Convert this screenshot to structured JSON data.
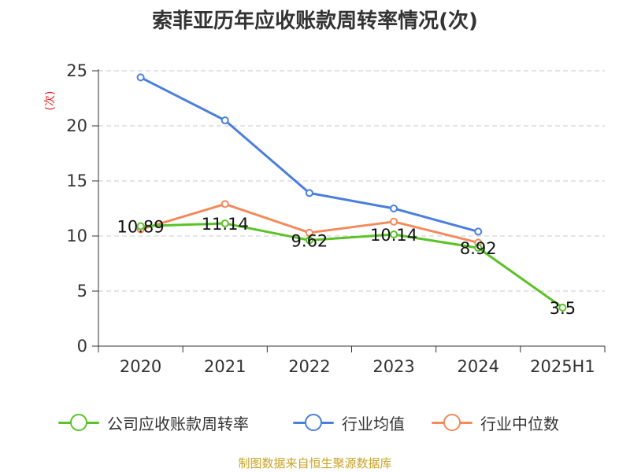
{
  "chart_data": {
    "type": "line",
    "title": "索菲亚历年应收账款周转率情况(次)",
    "ylabel": "(次)",
    "ylim": [
      0,
      25
    ],
    "yticks": [
      0,
      5,
      10,
      15,
      20,
      25
    ],
    "categories": [
      "2020",
      "2021",
      "2022",
      "2023",
      "2024",
      "2025H1"
    ],
    "grid": "horizontal dashed",
    "legend_position": "bottom",
    "series": [
      {
        "name": "公司应收账款周转率",
        "color": "#5ac226",
        "values": [
          10.89,
          11.14,
          9.62,
          10.14,
          8.92,
          3.5
        ],
        "labels": [
          "10.89",
          "11.14",
          "9.62",
          "10.14",
          "8.92",
          "3.5"
        ]
      },
      {
        "name": "行业均值",
        "color": "#4a7fdc",
        "values": [
          24.4,
          20.5,
          13.9,
          12.5,
          10.4,
          null
        ]
      },
      {
        "name": "行业中位数",
        "color": "#f28a5c",
        "values": [
          10.6,
          12.9,
          10.3,
          11.3,
          9.4,
          null
        ]
      }
    ]
  },
  "source": "制图数据来自恒生聚源数据库"
}
